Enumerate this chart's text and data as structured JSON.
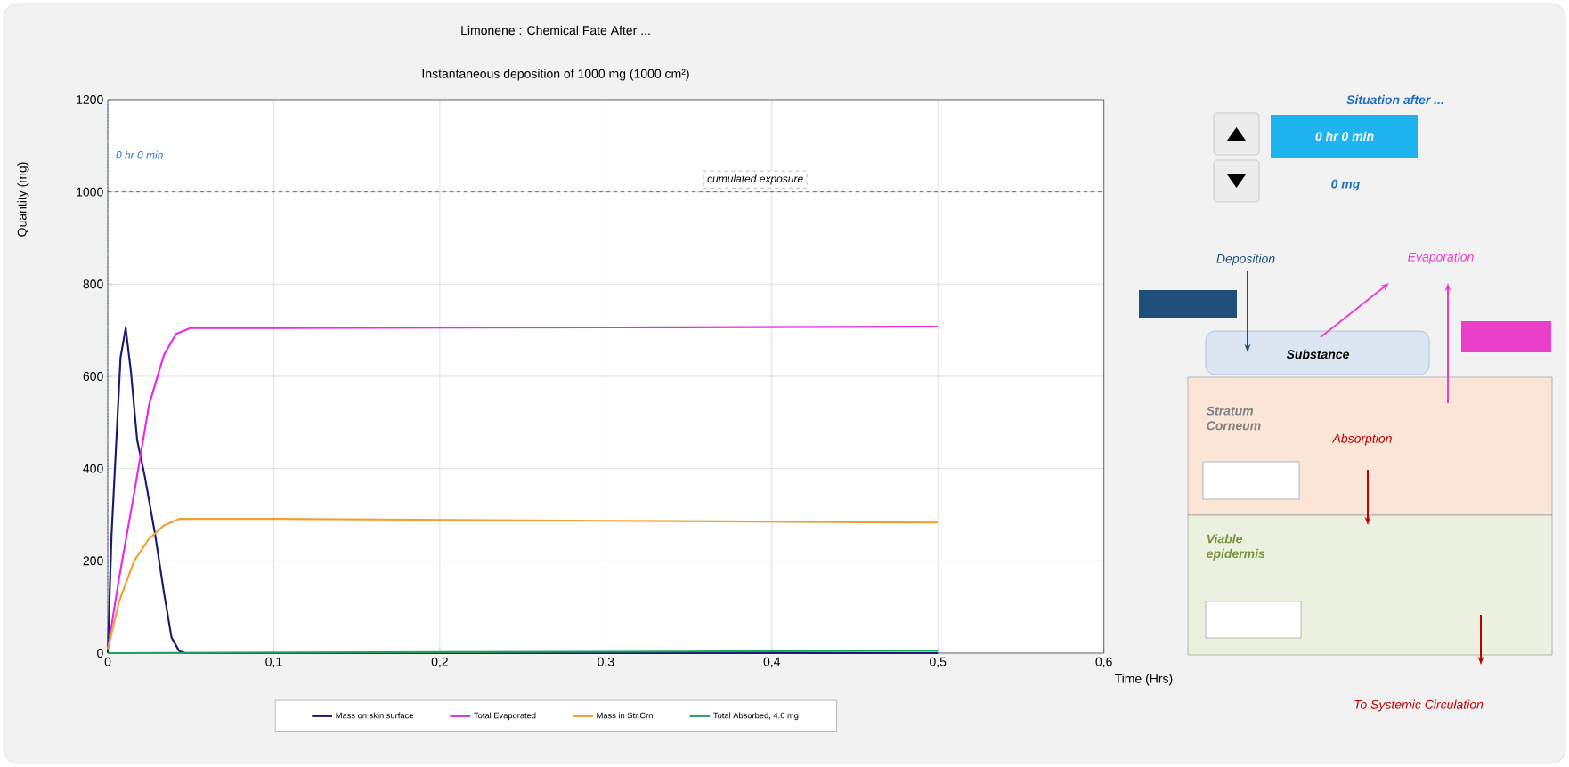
{
  "chart_data": [
    {
      "type": "line",
      "title": "Limonene : Chemical Fate After ...",
      "subtitle": "Instantaneous deposition of 1000 mg (1000 cm²)",
      "xlabel": "Time (Hrs)",
      "ylabel": "Quantity (mg)",
      "xlim": [
        0,
        0.6
      ],
      "ylim": [
        0,
        1200
      ],
      "xticks": [
        0,
        {
          "value": 0.1,
          "label": "0,1"
        },
        {
          "value": 0.2,
          "label": "0,2"
        },
        {
          "value": 0.3,
          "label": "0,3"
        },
        {
          "value": 0.4,
          "label": "0,4"
        },
        {
          "value": 0.5,
          "label": "0,5"
        },
        {
          "value": 0.6,
          "label": "0,6"
        }
      ],
      "yticks": [
        0,
        200,
        400,
        600,
        800,
        1000,
        1200
      ],
      "grid": true,
      "legend": "bottom",
      "marker": "none",
      "line_style": "solid",
      "series": [
        {
          "name": "Mass on skin surface",
          "color": "#1a1a6e",
          "x": [
            0,
            0.0023,
            0.005,
            0.0077,
            0.0108,
            0.014,
            0.0177,
            0.0222,
            0.0285,
            0.0339,
            0.0384,
            0.0429,
            0.0465,
            0.1,
            0.5
          ],
          "values": [
            0,
            257,
            449,
            641,
            705,
            609,
            462,
            385,
            258,
            130,
            34,
            5,
            0,
            0,
            0
          ]
        },
        {
          "name": "Total Evaporated",
          "color": "#e829e8",
          "x": [
            0,
            0.0068,
            0.0159,
            0.0249,
            0.0339,
            0.0411,
            0.05,
            0.1,
            0.3,
            0.5
          ],
          "values": [
            8,
            162,
            347,
            539,
            647,
            692,
            705,
            705,
            706,
            708
          ]
        },
        {
          "name": "Mass in Str.Crn",
          "color": "#f0a030",
          "x": [
            0,
            0.0068,
            0.0159,
            0.0249,
            0.0339,
            0.0429,
            0.1,
            0.2,
            0.3,
            0.5
          ],
          "values": [
            8,
            111,
            200,
            248,
            277,
            291,
            291,
            289,
            287,
            283
          ]
        },
        {
          "name": "Total Absorbed,  4.6 mg",
          "color": "#20a060",
          "x": [
            0,
            0.1,
            0.2,
            0.3,
            0.4,
            0.5
          ],
          "values": [
            0,
            1,
            2,
            3,
            4,
            5
          ]
        }
      ],
      "ref_lines": [
        {
          "axis": "y",
          "value": 1000,
          "label": "cumulated exposure",
          "color": "#000000",
          "line_style": "dashed"
        },
        {
          "axis": "x",
          "value": 0,
          "label": "0 hr 0 min",
          "color": "#2f6fc0",
          "line_style": "dotted"
        }
      ]
    },
    {
      "type": "other",
      "title": "Situation after ...",
      "annotations": [
        "0 hr 0 min",
        "0 mg",
        "Deposition",
        "Evaporation",
        "Substance",
        "Stratum Corneum",
        "Absorption",
        "Viable epidermis",
        "To Systemic Circulation"
      ]
    }
  ]
}
